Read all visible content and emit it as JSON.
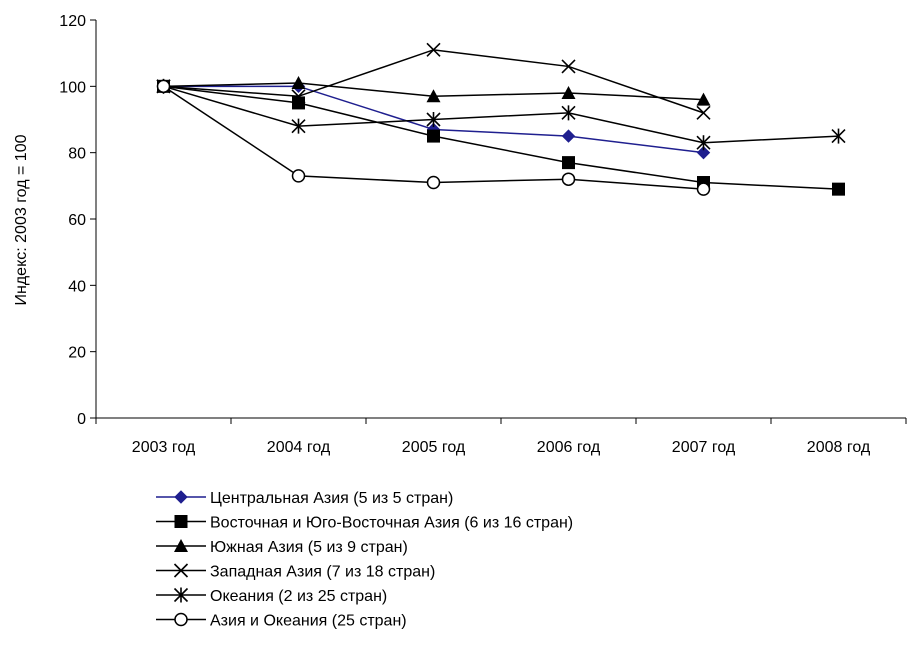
{
  "chart_data": {
    "type": "line",
    "title": "",
    "xlabel": "",
    "ylabel": "Индекс: 2003 год = 100",
    "ylim": [
      0,
      120
    ],
    "yticks": [
      "0",
      "20",
      "40",
      "60",
      "80",
      "100",
      "120"
    ],
    "categories": [
      "2003 год",
      "2004 год",
      "2005 год",
      "2006 год",
      "2007 год",
      "2008 год"
    ],
    "grid": false,
    "legend_position": "bottom",
    "series": [
      {
        "name": "Центральная Азия (5 из 5 стран)",
        "marker": "diamond",
        "color": "#1f1f8f",
        "values": [
          100,
          100,
          87,
          85,
          80,
          null
        ]
      },
      {
        "name": "Восточная и Юго-Восточная Азия (6 из 16 стран)",
        "marker": "square",
        "color": "#000000",
        "values": [
          100,
          95,
          85,
          77,
          71,
          69
        ]
      },
      {
        "name": "Южная Азия (5 из 9 стран)",
        "marker": "triangle",
        "color": "#000000",
        "values": [
          100,
          101,
          97,
          98,
          96,
          null
        ]
      },
      {
        "name": "Западная Азия (7 из 18 стран)",
        "marker": "x",
        "color": "#000000",
        "values": [
          100,
          97,
          111,
          106,
          92,
          null
        ]
      },
      {
        "name": "Океания (2 из 25 стран)",
        "marker": "star",
        "color": "#000000",
        "values": [
          100,
          88,
          90,
          92,
          83,
          85
        ]
      },
      {
        "name": "Азия и Океания (25 стран)",
        "marker": "circle",
        "color": "#000000",
        "values": [
          100,
          73,
          71,
          72,
          69,
          null
        ]
      }
    ]
  }
}
